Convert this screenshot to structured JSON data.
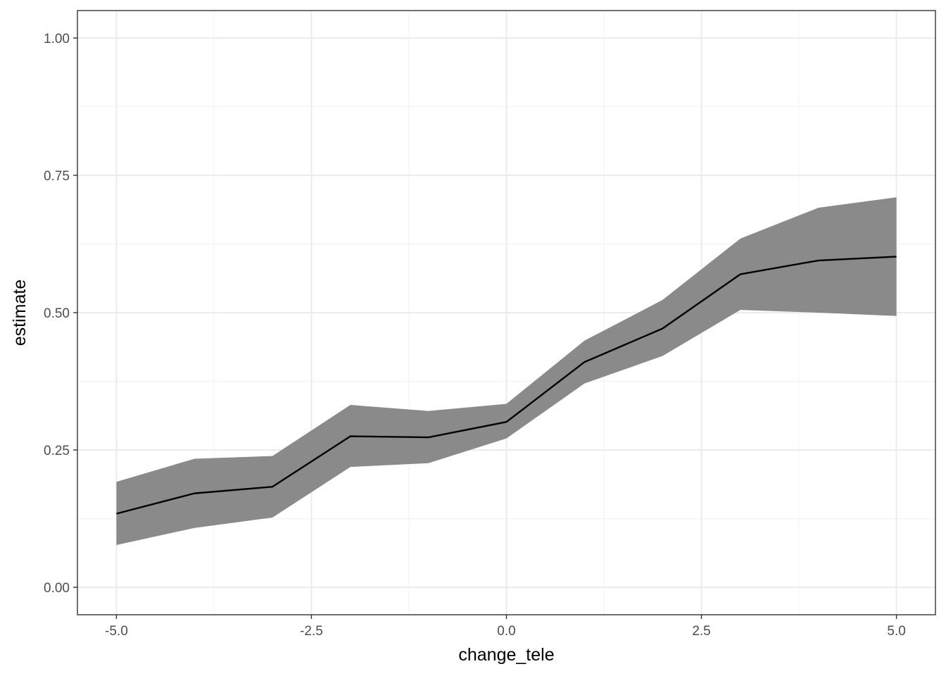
{
  "chart_data": {
    "type": "line",
    "theme": "bw",
    "grid": true,
    "xlabel": "change_tele",
    "ylabel": "estimate",
    "xlim": [
      -5.5,
      5.5
    ],
    "ylim": [
      -0.05,
      1.05
    ],
    "x_ticks": [
      -5.0,
      -2.5,
      0.0,
      2.5,
      5.0
    ],
    "x_tick_labels": [
      "-5.0",
      "-2.5",
      "0.0",
      "2.5",
      "5.0"
    ],
    "y_ticks": [
      0.0,
      0.25,
      0.5,
      0.75,
      1.0
    ],
    "y_tick_labels": [
      "0.00",
      "0.25",
      "0.50",
      "0.75",
      "1.00"
    ],
    "x_minor": [
      -3.75,
      -1.25,
      1.25,
      3.75
    ],
    "y_minor": [
      0.125,
      0.375,
      0.625,
      0.875
    ],
    "series": [
      {
        "x": [
          -5,
          -4,
          -3,
          -2,
          -1,
          0,
          1,
          2,
          3,
          4,
          5
        ],
        "estimate": [
          0.134,
          0.171,
          0.183,
          0.275,
          0.273,
          0.301,
          0.41,
          0.471,
          0.57,
          0.595,
          0.602
        ],
        "lower": [
          0.077,
          0.108,
          0.127,
          0.219,
          0.226,
          0.271,
          0.371,
          0.421,
          0.505,
          0.5,
          0.494
        ],
        "upper": [
          0.192,
          0.234,
          0.239,
          0.332,
          0.321,
          0.334,
          0.449,
          0.523,
          0.635,
          0.691,
          0.71
        ],
        "line_color": "#000000",
        "band_color": "#8a8a8a"
      }
    ]
  },
  "colors": {
    "background": "#ffffff",
    "major_grid": "#ebebeb",
    "minor_grid": "#f2f2f2",
    "panel_border": "#333333",
    "tick_mark": "#333333"
  }
}
